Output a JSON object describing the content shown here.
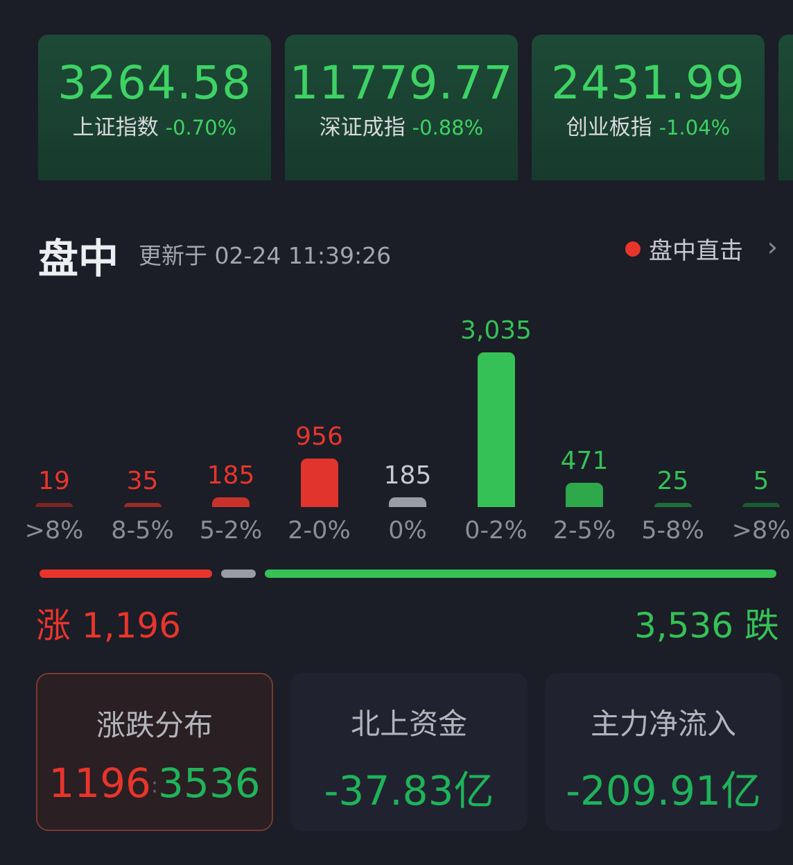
{
  "indices": [
    {
      "value": "3264.58",
      "name": "上证指数",
      "change": "-0.70%"
    },
    {
      "value": "11779.77",
      "name": "深证成指",
      "change": "-0.88%"
    },
    {
      "value": "2431.99",
      "name": "创业板指",
      "change": "-1.04%"
    }
  ],
  "section": {
    "title": "盘中",
    "updated": "更新于 02-24 11:39:26",
    "live_label": "盘中直击",
    "chevron": "chevron-right-icon"
  },
  "chart_data": {
    "type": "bar",
    "categories": [
      ">8%",
      "8-5%",
      "5-2%",
      "2-0%",
      "0%",
      "0-2%",
      "2-5%",
      "5-8%",
      ">8%"
    ],
    "values": [
      19,
      35,
      185,
      956,
      185,
      3035,
      471,
      25,
      5
    ],
    "value_labels": [
      "19",
      "35",
      "185",
      "956",
      "185",
      "3,035",
      "471",
      "25",
      "5"
    ],
    "colors": [
      "#7a2521",
      "#9a2b25",
      "#c9322b",
      "#e0342c",
      "#9a9ca4",
      "#35c156",
      "#2ea84a",
      "#1f6e3a",
      "#1a5c32"
    ],
    "label_colors": [
      "#e8352c",
      "#e8352c",
      "#e8352c",
      "#e8352c",
      "#c7c9cf",
      "#35c156",
      "#35c156",
      "#35c156",
      "#35c156"
    ]
  },
  "summary": {
    "up_label": "涨 1,196",
    "down_label": "3,536 跌",
    "up": 1196,
    "flat": 185,
    "down": 3536,
    "up_color": "#e8352c",
    "flat_color": "#9a9ca4",
    "down_color": "#35c156"
  },
  "stats": [
    {
      "label": "涨跌分布",
      "up": "1196",
      "sep": ":",
      "down": "3536"
    },
    {
      "label": "北上资金",
      "value": "-37.83亿"
    },
    {
      "label": "主力净流入",
      "value": "-209.91亿"
    }
  ]
}
